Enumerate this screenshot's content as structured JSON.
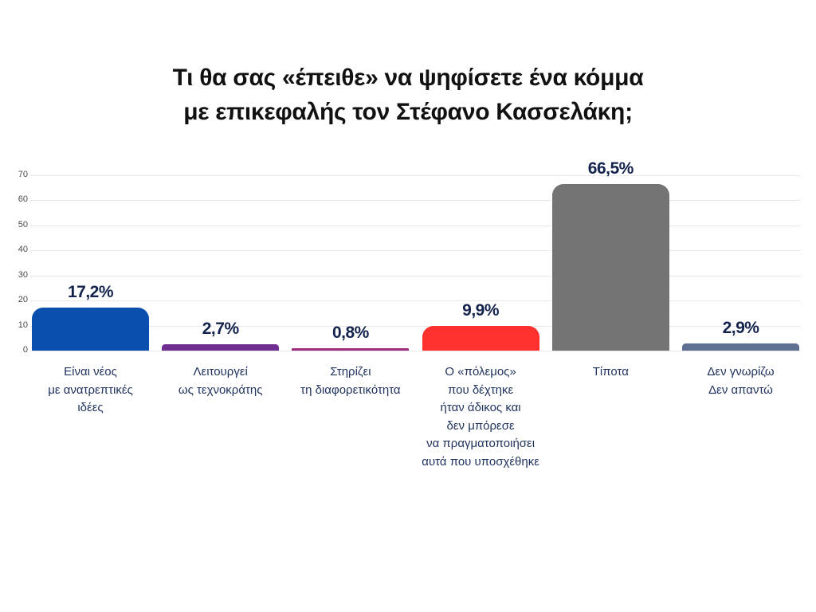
{
  "chart_data": {
    "type": "bar",
    "title": "Τι θα σας «έπειθε» να ψηφίσετε ένα κόμμα με επικεφαλής τον Στέφανο Κασσελάκη;",
    "title_lines": [
      "Τι θα σας «έπειθε» να ψηφίσετε ένα κόμμα",
      "με επικεφαλής τον Στέφανο Κασσελάκη;"
    ],
    "categories": [
      "Είναι νέος με ανατρεπτικές ιδέες",
      "Λειτουργεί ως τεχνοκράτης",
      "Στηρίζει τη διαφορετικότητα",
      "Ο «πόλεμος» που δέχτηκε ήταν άδικος και δεν μπόρεσε να πραγματοποιήσει αυτά που υποσχέθηκε",
      "Τίποτα",
      "Δεν γνωρίζω Δεν απαντώ"
    ],
    "category_lines": [
      [
        "Είναι νέος",
        "με ανατρεπτικές",
        "ιδέες"
      ],
      [
        "Λειτουργεί",
        "ως τεχνοκράτης"
      ],
      [
        "Στηρίζει",
        "τη διαφορετικότητα"
      ],
      [
        "Ο «πόλεμος»",
        "που δέχτηκε",
        "ήταν άδικος και",
        "δεν μπόρεσε",
        "να πραγματοποιήσει",
        "αυτά που υποσχέθηκε"
      ],
      [
        "Τίποτα"
      ],
      [
        "Δεν γνωρίζω",
        "Δεν απαντώ"
      ]
    ],
    "values": [
      17.2,
      2.7,
      0.8,
      9.9,
      66.5,
      2.9
    ],
    "value_labels": [
      "17,2%",
      "2,7%",
      "0,8%",
      "9,9%",
      "66,5%",
      "2,9%"
    ],
    "bar_colors": [
      "#0a4fae",
      "#6f2e90",
      "#9c2d7e",
      "#ff312e",
      "#747474",
      "#5d7092"
    ],
    "xlabel": "",
    "ylabel": "",
    "ylim": [
      0,
      70
    ],
    "yticks": [
      0,
      10,
      20,
      30,
      40,
      50,
      60,
      70
    ],
    "grid": true,
    "legend": "none",
    "text_colors": {
      "title": "#111111",
      "value_label": "#14234e",
      "category_label": "#20335e",
      "tick_label": "#4a4a4a",
      "gridline": "#e9e9e9"
    }
  }
}
